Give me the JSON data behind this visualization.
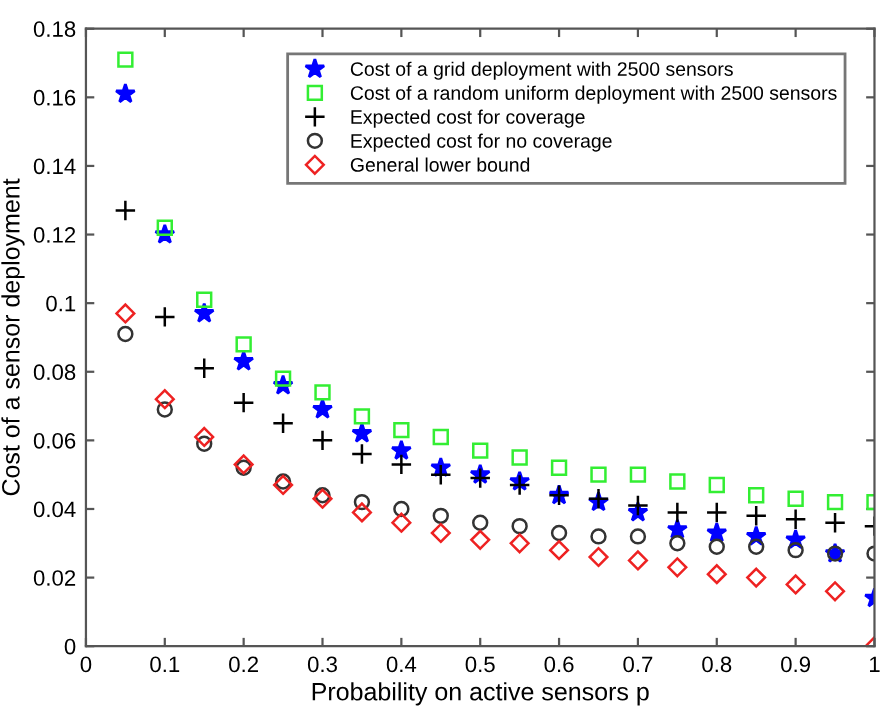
{
  "chart_data": {
    "type": "scatter",
    "xlabel": "Probability on active sensors p",
    "ylabel": "Cost of a sensor deployment",
    "x": [
      0.05,
      0.1,
      0.15,
      0.2,
      0.25,
      0.3,
      0.35,
      0.4,
      0.45,
      0.5,
      0.55,
      0.6,
      0.65,
      0.7,
      0.75,
      0.8,
      0.85,
      0.9,
      0.95,
      1.0
    ],
    "series": [
      {
        "name": "Cost of a grid deployment with 2500 sensors",
        "color": "#0000ff",
        "marker": "star",
        "values": [
          0.161,
          0.12,
          0.097,
          0.083,
          0.076,
          0.069,
          0.062,
          0.057,
          0.052,
          0.05,
          0.048,
          0.044,
          0.042,
          0.039,
          0.034,
          0.033,
          0.032,
          0.031,
          0.027,
          0.014
        ]
      },
      {
        "name": "Cost of a random uniform deployment with 2500 sensors",
        "color": "#33ee33",
        "marker": "square",
        "values": [
          0.171,
          0.122,
          0.101,
          0.088,
          0.078,
          0.074,
          0.067,
          0.063,
          0.061,
          0.057,
          0.055,
          0.052,
          0.05,
          0.05,
          0.048,
          0.047,
          0.044,
          0.043,
          0.042,
          0.042
        ]
      },
      {
        "name": "Expected cost for coverage",
        "color": "#000000",
        "marker": "cross",
        "values": [
          0.127,
          0.096,
          0.081,
          0.071,
          0.065,
          0.06,
          0.056,
          0.053,
          0.05,
          0.049,
          0.047,
          0.044,
          0.043,
          0.041,
          0.039,
          0.039,
          0.038,
          0.037,
          0.036,
          0.035
        ]
      },
      {
        "name": "Expected cost for no coverage",
        "color": "#333333",
        "marker": "circle",
        "values": [
          0.091,
          0.069,
          0.059,
          0.052,
          0.048,
          0.044,
          0.042,
          0.04,
          0.038,
          0.036,
          0.035,
          0.033,
          0.032,
          0.032,
          0.03,
          0.029,
          0.029,
          0.028,
          0.027,
          0.027
        ]
      },
      {
        "name": "General lower bound",
        "color": "#ee2222",
        "marker": "diamond",
        "values": [
          0.097,
          0.072,
          0.061,
          0.053,
          0.047,
          0.043,
          0.039,
          0.036,
          0.033,
          0.031,
          0.03,
          0.028,
          0.026,
          0.025,
          0.023,
          0.021,
          0.02,
          0.018,
          0.016,
          0.0
        ]
      }
    ],
    "xlim": [
      0,
      1
    ],
    "xticks": [
      0,
      0.1,
      0.2,
      0.3,
      0.4,
      0.5,
      0.6,
      0.7,
      0.8,
      0.9,
      1
    ],
    "ylim": [
      0,
      0.18
    ],
    "yticks": [
      0,
      0.02,
      0.04,
      0.06,
      0.08,
      0.1,
      0.12,
      0.14,
      0.16,
      0.18
    ],
    "legend": "top right",
    "grid": false
  }
}
